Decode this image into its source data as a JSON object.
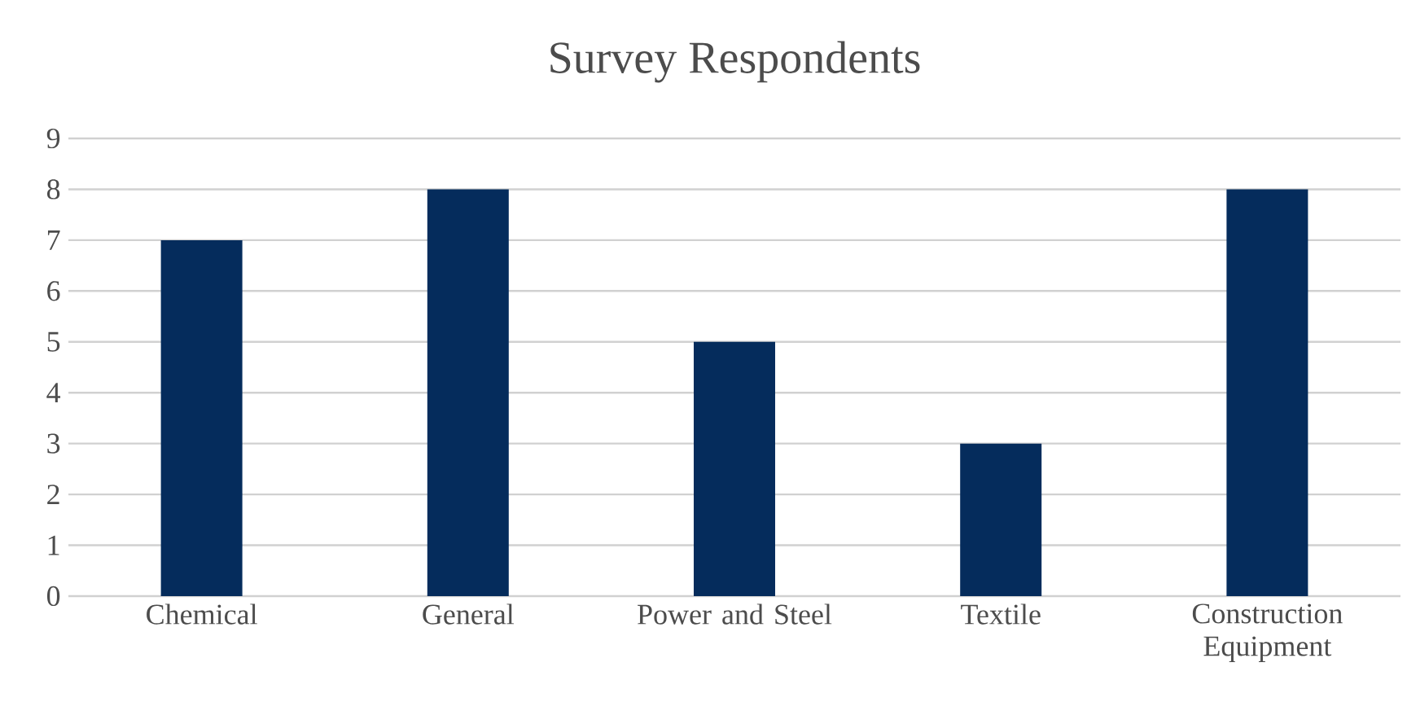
{
  "chart_data": {
    "type": "bar",
    "title": "Survey Respondents",
    "categories": [
      "Chemical",
      "General",
      "Power and Steel",
      "Textile",
      "Construction Equipment"
    ],
    "values": [
      7,
      8,
      5,
      3,
      8
    ],
    "color": "#052c5c",
    "ylim": [
      0,
      9
    ],
    "yticks": [
      0,
      1,
      2,
      3,
      4,
      5,
      6,
      7,
      8,
      9
    ],
    "grid": "y"
  }
}
